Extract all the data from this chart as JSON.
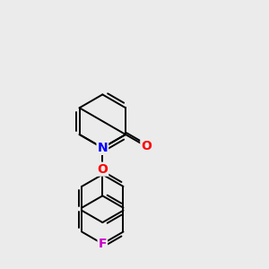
{
  "background_color": "#ebebeb",
  "bond_color": "#000000",
  "atom_colors": {
    "F": "#cc00cc",
    "O": "#ff0000",
    "N": "#0000ff"
  },
  "bond_width": 1.4,
  "figsize": [
    3.0,
    3.0
  ],
  "dpi": 100
}
